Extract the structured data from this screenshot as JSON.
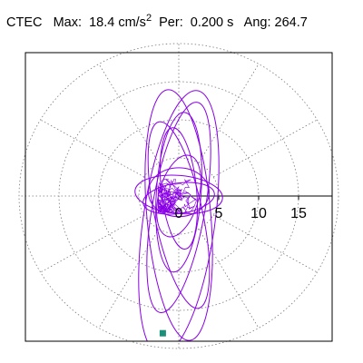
{
  "header": {
    "station": "CTEC",
    "max_label": "Max:",
    "max_value": "18.4",
    "max_unit": "cm/s",
    "max_unit_exp": "2",
    "per_label": "Per:",
    "per_value": "0.200",
    "per_unit": "s",
    "ang_label": "Ang:",
    "ang_value": "264.7"
  },
  "chart_data": {
    "type": "polar-particle-motion",
    "title": "",
    "radial_ticks": [
      "0",
      "5",
      "10",
      "15"
    ],
    "radial_tick_values": [
      0,
      5,
      10,
      15
    ],
    "rmax": 20,
    "angular_spokes_deg": [
      0,
      30,
      60,
      90,
      120,
      150,
      180,
      210,
      240,
      270,
      300,
      330
    ],
    "grid": true,
    "colors": {
      "trace": "#8a00e6",
      "marker": "#1b8f7a",
      "grid": "#7a7a7a",
      "axis": "#000000",
      "frame": "#000000"
    },
    "trace_orbits": [
      {
        "a": 4.5,
        "b": 17.5,
        "cy": -3.5,
        "rot": 8
      },
      {
        "a": 4.0,
        "b": 16.5,
        "cy": -2.5,
        "rot": -5
      },
      {
        "a": 3.3,
        "b": 14.0,
        "cy": -1.5,
        "rot": 10
      },
      {
        "a": 3.0,
        "b": 12.5,
        "cy": -2.5,
        "rot": -12
      },
      {
        "a": 2.8,
        "b": 10.5,
        "cy": 0.5,
        "rot": 4
      },
      {
        "a": 2.2,
        "b": 8.0,
        "cy": 1.0,
        "rot": -6
      },
      {
        "a": 5.5,
        "b": 2.5,
        "cy": 0.2,
        "rot": 5
      },
      {
        "a": 4.5,
        "b": 2.0,
        "cy": -0.3,
        "rot": -8
      },
      {
        "a": 3.8,
        "b": 3.2,
        "cy": 0.5,
        "rot": 0
      },
      {
        "a": 2.5,
        "b": 5.5,
        "cy": 0.0,
        "rot": 15
      }
    ],
    "end_marker": {
      "x": -2.0,
      "y": -18.0
    }
  }
}
